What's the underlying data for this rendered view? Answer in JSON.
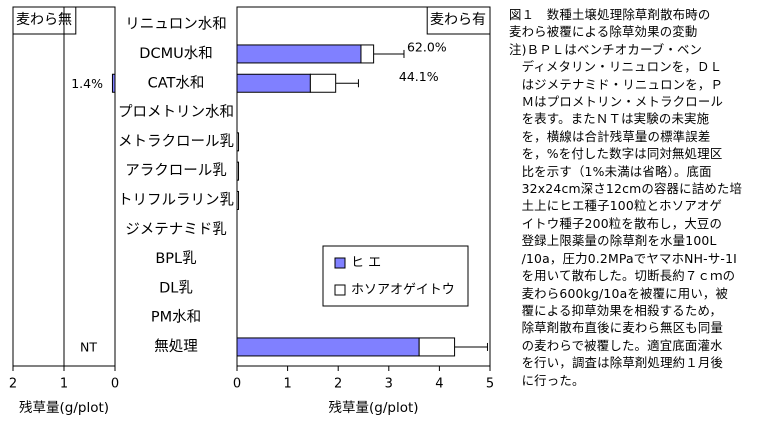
{
  "chart_data": {
    "type": "bar",
    "orientation": "horizontal",
    "stacked": true,
    "categories": [
      "リニュロン水和",
      "DCMU水和",
      "CAT水和",
      "プロメトリン水和",
      "メトラクロール乳",
      "アラクロール乳",
      "トリフルラリン乳",
      "ジメテナミド乳",
      "BPL乳",
      "DL乳",
      "PM水和",
      "無処理"
    ],
    "panels": [
      {
        "title": "麦わら無",
        "xlabel": "残草量(g/plot)",
        "xlim": [
          2,
          0
        ],
        "xticks": [
          "2",
          "1",
          "0"
        ],
        "series": [
          {
            "name": "ヒ エ",
            "color": "#8080ff",
            "values": [
              0,
              0,
              0.05,
              0,
              0,
              0,
              0,
              0,
              0,
              0,
              0,
              0
            ]
          },
          {
            "name": "ホソアオゲイトウ",
            "color": "#ffffff",
            "values": [
              0,
              0,
              0,
              0,
              0,
              0,
              0,
              0,
              0,
              0,
              0,
              0
            ]
          }
        ],
        "bar_labels": [
          {
            "category": "CAT水和",
            "text": "1.4%"
          },
          {
            "category": "無処理",
            "text": "NT"
          }
        ]
      },
      {
        "title": "麦わら有",
        "xlabel": "残草量(g/plot)",
        "xlim": [
          0,
          5
        ],
        "xticks": [
          "0",
          "1",
          "2",
          "3",
          "4",
          "5"
        ],
        "series": [
          {
            "name": "ヒ エ",
            "color": "#8080ff",
            "values": [
              0,
              2.45,
              1.45,
              0,
              0,
              0,
              0,
              0,
              0,
              0,
              0,
              3.6
            ]
          },
          {
            "name": "ホソアオゲイトウ",
            "color": "#ffffff",
            "values": [
              0,
              0.25,
              0.5,
              0,
              0.03,
              0.03,
              0.03,
              0,
              0,
              0,
              0,
              0.7
            ]
          }
        ],
        "error_bars": [
          {
            "category": "DCMU水和",
            "value": 3.3
          },
          {
            "category": "CAT水和",
            "value": 2.4
          },
          {
            "category": "無処理",
            "value": 4.95
          }
        ],
        "bar_labels": [
          {
            "category": "DCMU水和",
            "text": "62.0%"
          },
          {
            "category": "CAT水和",
            "text": "44.1%"
          }
        ],
        "legend_position": "bottom-right"
      }
    ],
    "grid": false
  },
  "caption": {
    "lines": [
      "図１　数種土壌処理除草剤散布時の",
      "麦わら被覆による除草効果の変動",
      "注)ＢＰＬはベンチオカーブ・ベン",
      "　ディメタリン・リニュロンを，ＤＬ",
      "　はジメテナミド・リニュロンを，Ｐ",
      "　Ｍはプロメトリン・メトラクロール",
      "　を表す。またＮＴは実験の未実施",
      "　を，横線は合計残草量の標準誤差",
      "　を，%を付した数字は同対無処理区",
      "　比を示す（1%未満は省略）。底面",
      "　32x24cm深さ12cmの容器に詰めた培",
      "　土上にヒエ種子100粒とホソアオゲ",
      "　イトウ種子200粒を散布し，大豆の",
      "　登録上限薬量の除草剤を水量100L",
      "　/10a，圧力0.2MPaでヤマホNH-サ-1I",
      "　を用いて散布した。切断長約７ｃｍの",
      "　麦わら600kg/10aを被覆に用い，被",
      "　覆による抑草効果を相殺するため，",
      "　除草剤散布直後に麦わら無区も同量",
      "　の麦わらで被覆した。適宜底面灌水",
      "　を行い，調査は除草剤処理約１月後",
      "　に行った。"
    ]
  }
}
